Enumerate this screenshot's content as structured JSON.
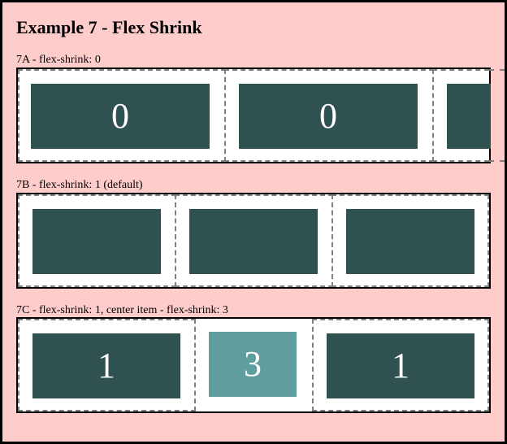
{
  "page": {
    "title": "Example 7 - Flex Shrink"
  },
  "sections": [
    {
      "label": "7A - flex-shrink: 0",
      "items": [
        {
          "value": "0"
        },
        {
          "value": "0"
        },
        {
          "value": ""
        }
      ]
    },
    {
      "label": "7B - flex-shrink: 1 (default)",
      "items": [
        {
          "value": ""
        },
        {
          "value": ""
        },
        {
          "value": ""
        }
      ]
    },
    {
      "label": "7C - flex-shrink: 1, center item - flex-shrink: 3",
      "items": [
        {
          "value": "1"
        },
        {
          "value": "3"
        },
        {
          "value": "1"
        }
      ]
    }
  ],
  "colors": {
    "background": "#ffcccc",
    "item_fill": "#2f5150",
    "center_item_fill": "#5f9e9e",
    "item_border": "#808080"
  }
}
